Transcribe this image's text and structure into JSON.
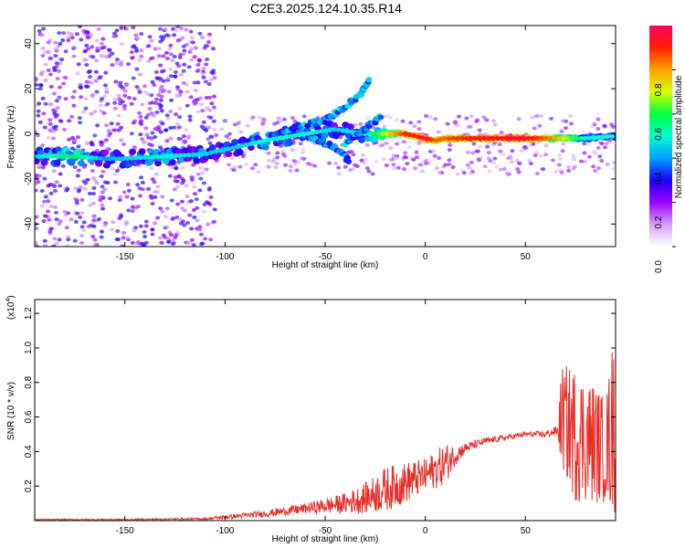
{
  "chart_data": [
    {
      "type": "heatmap",
      "title": "C2E3.2025.124.10.35.R14",
      "xlabel": "Height of straight line (km)",
      "ylabel": "Frequency (Hz)",
      "xlim": [
        -195,
        95
      ],
      "ylim": [
        -50,
        48
      ],
      "x_ticks": [
        -150,
        -100,
        -50,
        0,
        50
      ],
      "y_ticks": [
        -40,
        -20,
        0,
        20,
        40
      ],
      "colorbar": {
        "label": "Normalized spectral amplitude",
        "range": [
          0,
          1
        ],
        "ticks": [
          "0.0",
          "0.2",
          "0.4",
          "0.6",
          "0.8"
        ],
        "colors": [
          "#ffffff",
          "#d6a0ff",
          "#9b00ff",
          "#1a00ff",
          "#00a0ff",
          "#00ffd0",
          "#00ff40",
          "#d8ff00",
          "#ffa000",
          "#ff2000",
          "#ff0060"
        ]
      },
      "ridge": [
        {
          "x": -195,
          "y": -10,
          "a": 0.45
        },
        {
          "x": -175,
          "y": -10,
          "a": 0.6
        },
        {
          "x": -160,
          "y": -11,
          "a": 0.4
        },
        {
          "x": -150,
          "y": -11,
          "a": 0.45
        },
        {
          "x": -130,
          "y": -10,
          "a": 0.5
        },
        {
          "x": -110,
          "y": -9,
          "a": 0.45
        },
        {
          "x": -95,
          "y": -6,
          "a": 0.45
        },
        {
          "x": -80,
          "y": -3,
          "a": 0.5
        },
        {
          "x": -60,
          "y": 0,
          "a": 0.5
        },
        {
          "x": -45,
          "y": 2,
          "a": 0.45
        },
        {
          "x": -30,
          "y": 0,
          "a": 0.5
        },
        {
          "x": -20,
          "y": 0,
          "a": 0.7
        },
        {
          "x": -10,
          "y": 0,
          "a": 0.9
        },
        {
          "x": 0,
          "y": -2,
          "a": 0.95
        },
        {
          "x": 5,
          "y": -3,
          "a": 0.85
        },
        {
          "x": 10,
          "y": -2,
          "a": 0.85
        },
        {
          "x": 30,
          "y": -2,
          "a": 0.95
        },
        {
          "x": 50,
          "y": -2,
          "a": 0.95
        },
        {
          "x": 65,
          "y": -2,
          "a": 0.8
        },
        {
          "x": 80,
          "y": -2,
          "a": 0.5
        },
        {
          "x": 95,
          "y": -1,
          "a": 0.5
        }
      ],
      "branches": [
        {
          "x": [
            -70,
            -50,
            -40,
            -32,
            -28
          ],
          "y": [
            2,
            6,
            12,
            18,
            24
          ],
          "a": 0.4
        },
        {
          "x": [
            -55,
            -45,
            -38
          ],
          "y": [
            -2,
            -6,
            -12
          ],
          "a": 0.35
        },
        {
          "x": [
            -40,
            -30,
            -22
          ],
          "y": [
            -4,
            2,
            8
          ],
          "a": 0.4
        }
      ]
    },
    {
      "type": "line",
      "xlabel": "Height of straight line (km)",
      "ylabel": "SNR (10 * v/v)",
      "y_multiplier": "(x10",
      "y_multiplier_exp": "4",
      "xlim": [
        -195,
        95
      ],
      "ylim": [
        0,
        1.28
      ],
      "x_ticks": [
        -150,
        -100,
        -50,
        0,
        50
      ],
      "y_ticks": [
        0.2,
        0.4,
        0.6,
        0.8,
        1.0,
        1.2
      ],
      "color": "#e8302a",
      "envelope": {
        "x": [
          -195,
          -150,
          -110,
          -100,
          -80,
          -60,
          -40,
          -30,
          -20,
          -10,
          0,
          10,
          15,
          20,
          30,
          40,
          50,
          60,
          66,
          68,
          75,
          85,
          90,
          95
        ],
        "mean": [
          0.005,
          0.006,
          0.01,
          0.02,
          0.04,
          0.07,
          0.1,
          0.13,
          0.18,
          0.22,
          0.26,
          0.33,
          0.38,
          0.42,
          0.46,
          0.48,
          0.5,
          0.5,
          0.52,
          0.6,
          0.5,
          0.45,
          0.4,
          0.6
        ],
        "spread": [
          0.004,
          0.004,
          0.006,
          0.012,
          0.02,
          0.03,
          0.06,
          0.09,
          0.13,
          0.12,
          0.1,
          0.12,
          0.06,
          0.03,
          0.02,
          0.015,
          0.015,
          0.02,
          0.03,
          0.3,
          0.4,
          0.35,
          0.3,
          0.6
        ]
      }
    }
  ]
}
